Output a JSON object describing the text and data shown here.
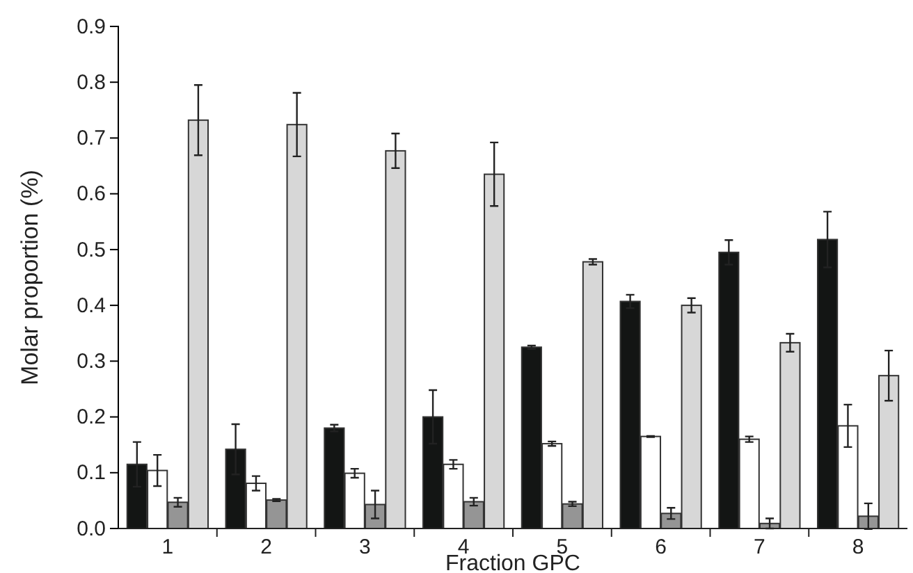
{
  "chart_data": {
    "type": "bar",
    "xlabel": "Fraction GPC",
    "ylabel": "Molar proportion (%)",
    "categories": [
      "1",
      "2",
      "3",
      "4",
      "5",
      "6",
      "7",
      "8"
    ],
    "ylim": [
      0,
      0.9
    ],
    "yticks": [
      {
        "value": 0,
        "label": "0.0"
      },
      0.1,
      0.2,
      0.3,
      0.4,
      0.5,
      0.6,
      0.7,
      0.8,
      0.9
    ],
    "grid": false,
    "series": [
      {
        "color": "#131514",
        "values": [
          0.115,
          0.142,
          0.18,
          0.2,
          0.325,
          0.407,
          0.495,
          0.518
        ],
        "errors": [
          0.04,
          0.045,
          0.006,
          0.048,
          0.003,
          0.012,
          0.022,
          0.05
        ]
      },
      {
        "color": "#ffffff",
        "values": [
          0.104,
          0.081,
          0.099,
          0.115,
          0.152,
          0.165,
          0.16,
          0.184
        ],
        "errors": [
          0.028,
          0.013,
          0.008,
          0.008,
          0.004,
          0.001,
          0.005,
          0.038
        ]
      },
      {
        "color": "#959595",
        "values": [
          0.047,
          0.051,
          0.043,
          0.048,
          0.044,
          0.027,
          0.009,
          0.022
        ],
        "errors": [
          0.008,
          0.002,
          0.025,
          0.007,
          0.004,
          0.01,
          0.009,
          0.023
        ]
      },
      {
        "color": "#d7d7d7",
        "values": [
          0.732,
          0.724,
          0.677,
          0.635,
          0.478,
          0.4,
          0.333,
          0.274
        ],
        "errors": [
          0.063,
          0.057,
          0.031,
          0.057,
          0.005,
          0.013,
          0.016,
          0.045
        ]
      }
    ]
  }
}
